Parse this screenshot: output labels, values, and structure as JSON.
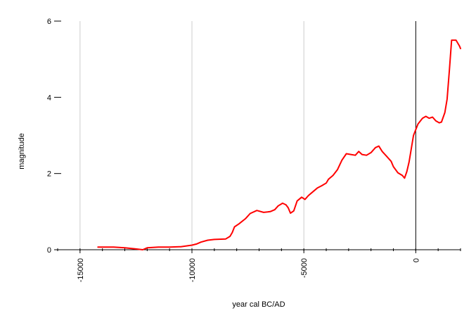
{
  "chart_data": {
    "type": "line",
    "title": "",
    "xlabel": "year cal BC/AD",
    "ylabel": "magnitude",
    "xlim": [
      -16000,
      2000
    ],
    "ylim": [
      0,
      6
    ],
    "x_ticks": [
      -15000,
      -10000,
      -5000,
      0
    ],
    "x_tick_labels": [
      "-15000",
      "-10000",
      "-5000",
      "0"
    ],
    "y_ticks": [
      0,
      2,
      4,
      6
    ],
    "y_tick_labels": [
      "0",
      "2",
      "4",
      "6"
    ],
    "grid": "vertical",
    "legend": "none",
    "series": [
      {
        "color": "#ff0000",
        "points": [
          [
            -14200,
            0.07
          ],
          [
            -13500,
            0.07
          ],
          [
            -13000,
            0.05
          ],
          [
            -12500,
            0.02
          ],
          [
            -12200,
            0.0
          ],
          [
            -12000,
            0.05
          ],
          [
            -11500,
            0.07
          ],
          [
            -11000,
            0.07
          ],
          [
            -10500,
            0.08
          ],
          [
            -10000,
            0.12
          ],
          [
            -9800,
            0.15
          ],
          [
            -9600,
            0.2
          ],
          [
            -9300,
            0.25
          ],
          [
            -9000,
            0.27
          ],
          [
            -8500,
            0.28
          ],
          [
            -8300,
            0.35
          ],
          [
            -8200,
            0.45
          ],
          [
            -8100,
            0.6
          ],
          [
            -7900,
            0.68
          ],
          [
            -7600,
            0.82
          ],
          [
            -7400,
            0.95
          ],
          [
            -7100,
            1.03
          ],
          [
            -6800,
            0.98
          ],
          [
            -6500,
            1.0
          ],
          [
            -6300,
            1.05
          ],
          [
            -6150,
            1.15
          ],
          [
            -5950,
            1.22
          ],
          [
            -5800,
            1.18
          ],
          [
            -5700,
            1.1
          ],
          [
            -5600,
            0.96
          ],
          [
            -5450,
            1.02
          ],
          [
            -5300,
            1.28
          ],
          [
            -5100,
            1.38
          ],
          [
            -4950,
            1.32
          ],
          [
            -4800,
            1.42
          ],
          [
            -4600,
            1.52
          ],
          [
            -4400,
            1.62
          ],
          [
            -4200,
            1.68
          ],
          [
            -4000,
            1.75
          ],
          [
            -3900,
            1.85
          ],
          [
            -3700,
            1.95
          ],
          [
            -3500,
            2.1
          ],
          [
            -3300,
            2.35
          ],
          [
            -3100,
            2.52
          ],
          [
            -2900,
            2.5
          ],
          [
            -2700,
            2.48
          ],
          [
            -2550,
            2.58
          ],
          [
            -2400,
            2.5
          ],
          [
            -2200,
            2.48
          ],
          [
            -2000,
            2.55
          ],
          [
            -1800,
            2.68
          ],
          [
            -1650,
            2.72
          ],
          [
            -1500,
            2.58
          ],
          [
            -1300,
            2.45
          ],
          [
            -1100,
            2.32
          ],
          [
            -1000,
            2.18
          ],
          [
            -800,
            2.02
          ],
          [
            -600,
            1.95
          ],
          [
            -500,
            1.88
          ],
          [
            -400,
            2.05
          ],
          [
            -300,
            2.3
          ],
          [
            -100,
            3.0
          ],
          [
            100,
            3.3
          ],
          [
            300,
            3.45
          ],
          [
            450,
            3.5
          ],
          [
            600,
            3.45
          ],
          [
            750,
            3.48
          ],
          [
            900,
            3.38
          ],
          [
            1050,
            3.33
          ],
          [
            1150,
            3.35
          ],
          [
            1300,
            3.6
          ],
          [
            1400,
            3.95
          ],
          [
            1500,
            4.7
          ],
          [
            1600,
            5.5
          ],
          [
            1800,
            5.5
          ],
          [
            1950,
            5.35
          ],
          [
            2000,
            5.28
          ]
        ]
      }
    ]
  }
}
